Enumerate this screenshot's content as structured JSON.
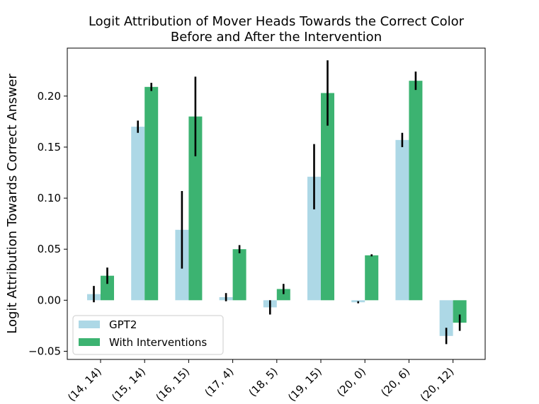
{
  "chart_data": {
    "type": "bar",
    "title": "Logit Attribution of Mover Heads Towards the Correct Color\nBefore and After the Intervention",
    "xlabel": "",
    "ylabel": "Logit Attribution Towards Correct Answer",
    "ylim": [
      -0.058,
      0.247
    ],
    "yticks": [
      -0.05,
      0.0,
      0.05,
      0.1,
      0.15,
      0.2
    ],
    "ytick_labels": [
      "−0.05",
      "0.00",
      "0.05",
      "0.10",
      "0.15",
      "0.20"
    ],
    "categories": [
      "(14, 14)",
      "(15, 14)",
      "(16, 15)",
      "(17, 4)",
      "(18, 5)",
      "(19, 15)",
      "(20, 0)",
      "(20, 6)",
      "(20, 12)"
    ],
    "series": [
      {
        "name": "GPT2",
        "color": "#add8e6",
        "values": [
          0.006,
          0.17,
          0.069,
          0.003,
          -0.007,
          0.121,
          -0.002,
          0.157,
          -0.035
        ],
        "errors": [
          0.008,
          0.006,
          0.038,
          0.004,
          0.007,
          0.032,
          0.001,
          0.007,
          0.008
        ]
      },
      {
        "name": "With Interventions",
        "color": "#3cb371",
        "values": [
          0.024,
          0.209,
          0.18,
          0.05,
          0.011,
          0.203,
          0.044,
          0.215,
          -0.022
        ],
        "errors": [
          0.008,
          0.004,
          0.039,
          0.004,
          0.005,
          0.032,
          0.001,
          0.009,
          0.008
        ]
      }
    ],
    "legend_position": "lower-left"
  }
}
